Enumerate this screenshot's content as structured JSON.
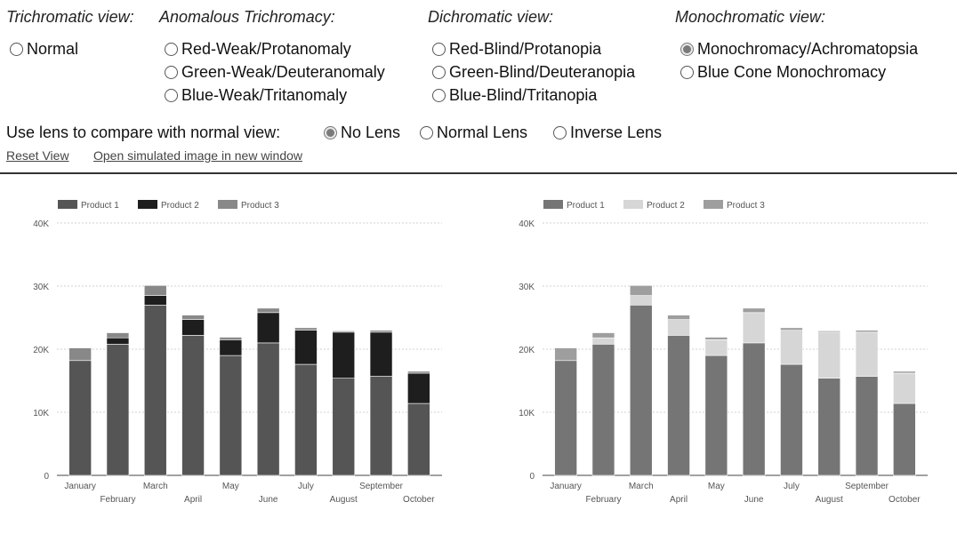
{
  "sections": [
    {
      "header": "Trichromatic view:",
      "options": [
        {
          "label": "Normal",
          "checked": false
        }
      ]
    },
    {
      "header": "Anomalous Trichromacy:",
      "options": [
        {
          "label": "Red-Weak/Protanomaly",
          "checked": false
        },
        {
          "label": "Green-Weak/Deuteranomaly",
          "checked": false
        },
        {
          "label": "Blue-Weak/Tritanomaly",
          "checked": false
        }
      ]
    },
    {
      "header": "Dichromatic view:",
      "options": [
        {
          "label": "Red-Blind/Protanopia",
          "checked": false
        },
        {
          "label": "Green-Blind/Deuteranopia",
          "checked": false
        },
        {
          "label": "Blue-Blind/Tritanopia",
          "checked": false
        }
      ]
    },
    {
      "header": "Monochromatic view:",
      "options": [
        {
          "label": "Monochromacy/Achromatopsia",
          "checked": true
        },
        {
          "label": "Blue Cone Monochromacy",
          "checked": false
        }
      ]
    }
  ],
  "lens": {
    "label": "Use lens to compare with normal view:",
    "options": [
      {
        "label": "No Lens",
        "checked": true
      },
      {
        "label": "Normal Lens",
        "checked": false
      },
      {
        "label": "Inverse Lens",
        "checked": false
      }
    ]
  },
  "links": {
    "reset": "Reset View",
    "open_window": "Open simulated image in new window"
  },
  "chart_data": [
    {
      "type": "bar",
      "stacked": true,
      "categories": [
        "January",
        "February",
        "March",
        "April",
        "May",
        "June",
        "July",
        "August",
        "September",
        "October"
      ],
      "series": [
        {
          "name": "Product 1",
          "values": [
            18200,
            20800,
            27000,
            22200,
            19000,
            21000,
            17600,
            15400,
            15700,
            11400
          ],
          "color": "#555555"
        },
        {
          "name": "Product 2",
          "values": [
            0,
            1000,
            1500,
            2500,
            2500,
            4800,
            5400,
            7300,
            7000,
            4800
          ],
          "color": "#1e1e1e"
        },
        {
          "name": "Product 3",
          "values": [
            2000,
            800,
            1600,
            700,
            400,
            700,
            400,
            200,
            300,
            300
          ],
          "color": "#888888"
        }
      ],
      "yticks": [
        "0",
        "10K",
        "20K",
        "30K",
        "40K"
      ],
      "ylim": [
        0,
        40000
      ],
      "grid": true,
      "legend": "top-left"
    },
    {
      "type": "bar",
      "stacked": true,
      "categories": [
        "January",
        "February",
        "March",
        "April",
        "May",
        "June",
        "July",
        "August",
        "September",
        "October"
      ],
      "series": [
        {
          "name": "Product 1",
          "values": [
            18200,
            20800,
            27000,
            22200,
            19000,
            21000,
            17600,
            15400,
            15700,
            11400
          ],
          "color": "#757575"
        },
        {
          "name": "Product 2",
          "values": [
            0,
            1000,
            1500,
            2500,
            2500,
            4800,
            5400,
            7300,
            7000,
            4800
          ],
          "color": "#d6d6d6"
        },
        {
          "name": "Product 3",
          "values": [
            2000,
            800,
            1600,
            700,
            400,
            700,
            400,
            200,
            300,
            300
          ],
          "color": "#9e9e9e"
        }
      ],
      "yticks": [
        "0",
        "10K",
        "20K",
        "30K",
        "40K"
      ],
      "ylim": [
        0,
        40000
      ],
      "grid": true,
      "legend": "top-left"
    }
  ]
}
